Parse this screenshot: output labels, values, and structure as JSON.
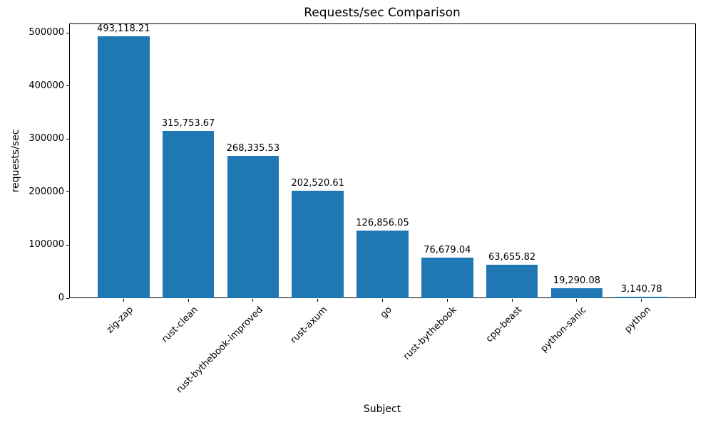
{
  "chart_data": {
    "type": "bar",
    "title": "Requests/sec Comparison",
    "xlabel": "Subject",
    "ylabel": "requests/sec",
    "categories": [
      "zig-zap",
      "rust-clean",
      "rust-bythebook-improved",
      "rust-axum",
      "go",
      "rust-bythebook",
      "cpp-beast",
      "python-sanic",
      "python"
    ],
    "values": [
      493118.21,
      315753.67,
      268335.53,
      202520.61,
      126856.05,
      76679.04,
      63655.82,
      19290.08,
      3140.78
    ],
    "value_labels": [
      "493,118.21",
      "315,753.67",
      "268,335.53",
      "202,520.61",
      "126,856.05",
      "76,679.04",
      "63,655.82",
      "19,290.08",
      "3,140.78"
    ],
    "yticks": [
      0,
      100000,
      200000,
      300000,
      400000,
      500000
    ],
    "ytick_labels": [
      "0",
      "100000",
      "200000",
      "300000",
      "400000",
      "500000"
    ],
    "ylim": [
      0,
      517774
    ],
    "bar_color": "#1f77b4",
    "grid": false,
    "legend": null
  }
}
